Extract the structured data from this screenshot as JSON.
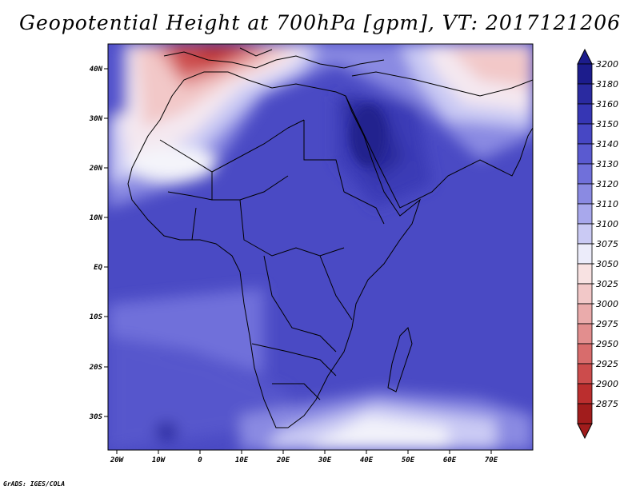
{
  "title": "Geopotential Height at 700hPa [gpm], VT: 2017121206",
  "footer": "GrADS: IGES/COLA",
  "map": {
    "lon_labels": [
      "20W",
      "10W",
      "0",
      "10E",
      "20E",
      "30E",
      "40E",
      "50E",
      "60E",
      "70E"
    ],
    "lat_labels": [
      "40N",
      "30N",
      "20N",
      "10N",
      "EQ",
      "10S",
      "20S",
      "30S"
    ]
  },
  "colorbar": {
    "labels": [
      "3200",
      "3180",
      "3160",
      "3150",
      "3140",
      "3130",
      "3120",
      "3110",
      "3100",
      "3075",
      "3050",
      "3025",
      "3000",
      "2975",
      "2950",
      "2925",
      "2900",
      "2875"
    ],
    "colors": [
      "#1c1c8c",
      "#2a2aa0",
      "#3636b4",
      "#4747c4",
      "#5a5ad0",
      "#7070da",
      "#8a8ae2",
      "#a8a8ec",
      "#cacaf4",
      "#ececfa",
      "#f8e2e2",
      "#f2c8c8",
      "#eaabab",
      "#e28e8e",
      "#d86c6c",
      "#cc4c4c",
      "#bb2e2e",
      "#a11c1c"
    ]
  }
}
